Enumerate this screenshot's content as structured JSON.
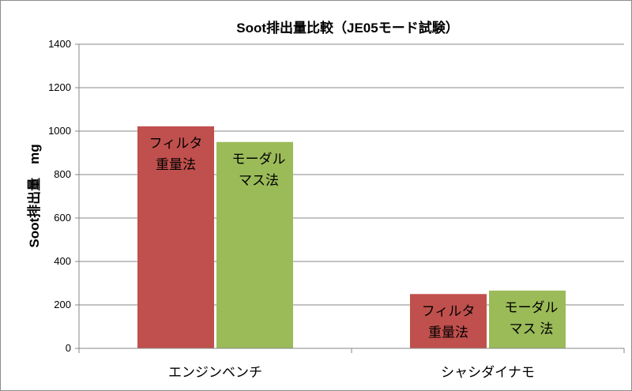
{
  "chart_data": {
    "type": "bar",
    "title": "Soot排出量比較（JE05モード試験）",
    "ylabel": "Soot排出量　mg",
    "xlabel": "",
    "ylim": [
      0,
      1400
    ],
    "ytick_step": 200,
    "grid": true,
    "legend": "none",
    "categories": [
      "エンジンベンチ",
      "シャシダイナモ"
    ],
    "series": [
      {
        "label_lines": [
          "フィルタ",
          "重量法"
        ],
        "color": "#c0504d",
        "values": [
          1022,
          250
        ]
      },
      {
        "label_lines": [
          "モーダル",
          "マス法"
        ],
        "label_lines_alt": [
          "モーダル",
          "マス 法"
        ],
        "color": "#9bbb59",
        "values": [
          950,
          266
        ]
      }
    ]
  }
}
